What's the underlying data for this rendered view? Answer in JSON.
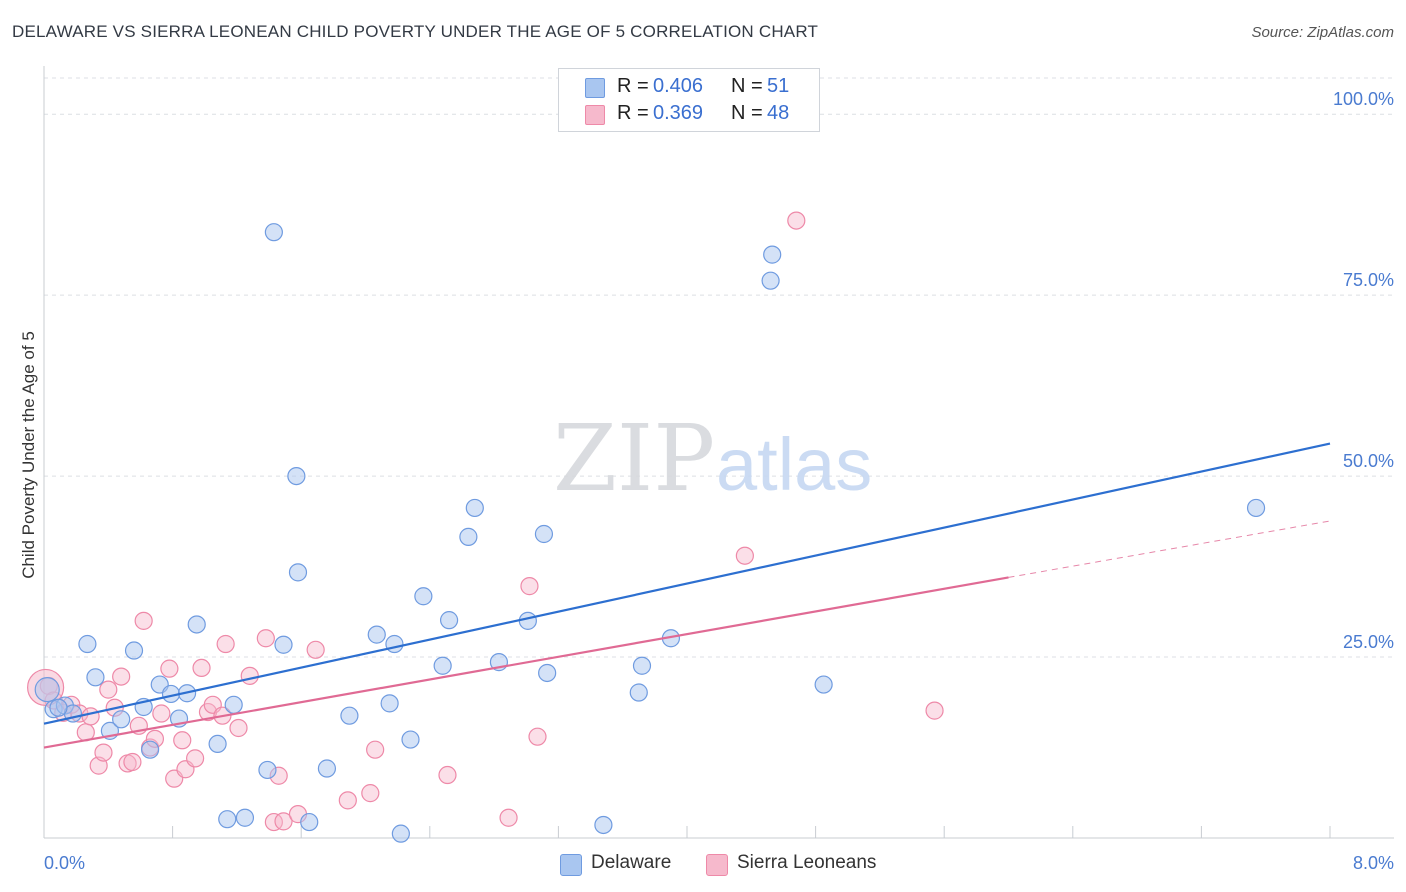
{
  "header": {
    "title": "DELAWARE VS SIERRA LEONEAN CHILD POVERTY UNDER THE AGE OF 5 CORRELATION CHART",
    "source": "Source: ZipAtlas.com"
  },
  "watermark": {
    "zip": "ZIP",
    "atlas": "atlas"
  },
  "legend": {
    "rows": [
      {
        "r_label": "R =",
        "r_value": "0.406",
        "n_label": "N =",
        "n_value": "51",
        "color": "#a9c6f0"
      },
      {
        "r_label": "R =",
        "r_value": "0.369",
        "n_label": "N =",
        "n_value": "48",
        "color": "#f6b9cc"
      }
    ]
  },
  "bottom_legend": {
    "items": [
      "Delaware",
      "Sierra Leoneans"
    ]
  },
  "colors": {
    "delaware_fill": "#a9c6f0",
    "delaware_stroke": "#6f9be0",
    "delaware_line": "#2d6fd0",
    "sierra_fill": "#f6b9cc",
    "sierra_stroke": "#ee89a8",
    "sierra_line": "#e06a94",
    "tick_text": "#4a7bd0",
    "grid": "#dcdfe4"
  },
  "chart_data": {
    "type": "scatter",
    "title": "DELAWARE VS SIERRA LEONEAN CHILD POVERTY UNDER THE AGE OF 5 CORRELATION CHART",
    "xlabel": "",
    "ylabel": "Child Poverty Under the Age of 5",
    "xlim": [
      0,
      8
    ],
    "ylim": [
      0,
      105
    ],
    "x_tick_labels": [
      "0.0%",
      "8.0%"
    ],
    "y_ticks": [
      25,
      50,
      75,
      100
    ],
    "y_tick_labels": [
      "25.0%",
      "50.0%",
      "75.0%",
      "100.0%"
    ],
    "grid": true,
    "legend_position": "top-center",
    "series": [
      {
        "name": "Delaware",
        "r": 0.406,
        "n": 51,
        "trend": {
          "x": [
            0,
            8
          ],
          "y": [
            15.8,
            54.5
          ]
        },
        "points": [
          [
            0.02,
            20.5
          ],
          [
            0.06,
            17.8
          ],
          [
            0.13,
            18.3
          ],
          [
            0.18,
            17.2
          ],
          [
            0.27,
            26.8
          ],
          [
            0.32,
            22.2
          ],
          [
            0.41,
            14.8
          ],
          [
            0.48,
            16.4
          ],
          [
            0.56,
            25.9
          ],
          [
            0.62,
            18.1
          ],
          [
            0.66,
            12.2
          ],
          [
            0.72,
            21.2
          ],
          [
            0.79,
            19.9
          ],
          [
            0.84,
            16.5
          ],
          [
            0.89,
            20.0
          ],
          [
            0.95,
            29.5
          ],
          [
            1.08,
            13.0
          ],
          [
            1.14,
            2.6
          ],
          [
            1.18,
            18.4
          ],
          [
            1.25,
            2.8
          ],
          [
            1.39,
            9.4
          ],
          [
            1.43,
            83.7
          ],
          [
            1.49,
            26.7
          ],
          [
            1.57,
            50.0
          ],
          [
            1.58,
            36.7
          ],
          [
            1.65,
            2.2
          ],
          [
            1.76,
            9.6
          ],
          [
            1.9,
            16.9
          ],
          [
            2.07,
            28.1
          ],
          [
            2.15,
            18.6
          ],
          [
            2.18,
            26.8
          ],
          [
            2.22,
            0.6
          ],
          [
            2.28,
            13.6
          ],
          [
            2.36,
            33.4
          ],
          [
            2.48,
            23.8
          ],
          [
            2.52,
            30.1
          ],
          [
            2.64,
            41.6
          ],
          [
            2.68,
            45.6
          ],
          [
            2.83,
            24.3
          ],
          [
            3.01,
            30.0
          ],
          [
            3.11,
            42.0
          ],
          [
            3.13,
            22.8
          ],
          [
            3.48,
            1.8
          ],
          [
            3.7,
            20.1
          ],
          [
            3.72,
            23.8
          ],
          [
            3.9,
            27.6
          ],
          [
            4.52,
            77.0
          ],
          [
            4.53,
            80.6
          ],
          [
            4.85,
            21.2
          ],
          [
            7.54,
            45.6
          ],
          [
            0.09,
            18.0
          ]
        ]
      },
      {
        "name": "Sierra Leoneans",
        "r": 0.369,
        "n": 48,
        "trend": {
          "x": [
            0,
            6.0
          ],
          "y": [
            12.5,
            36.0
          ]
        },
        "trend_dashed": {
          "x": [
            6.0,
            8
          ],
          "y": [
            36.0,
            43.8
          ]
        },
        "points": [
          [
            0.03,
            21.0
          ],
          [
            0.06,
            19.0
          ],
          [
            0.12,
            17.3
          ],
          [
            0.17,
            18.4
          ],
          [
            0.22,
            17.2
          ],
          [
            0.26,
            14.6
          ],
          [
            0.29,
            16.8
          ],
          [
            0.34,
            10.0
          ],
          [
            0.37,
            11.8
          ],
          [
            0.4,
            20.5
          ],
          [
            0.44,
            18.0
          ],
          [
            0.48,
            22.3
          ],
          [
            0.52,
            10.3
          ],
          [
            0.55,
            10.5
          ],
          [
            0.59,
            15.5
          ],
          [
            0.62,
            30.0
          ],
          [
            0.66,
            12.5
          ],
          [
            0.69,
            13.7
          ],
          [
            0.73,
            17.2
          ],
          [
            0.78,
            23.4
          ],
          [
            0.81,
            8.2
          ],
          [
            0.86,
            13.5
          ],
          [
            0.88,
            9.5
          ],
          [
            0.94,
            11.0
          ],
          [
            0.98,
            23.5
          ],
          [
            1.02,
            17.4
          ],
          [
            1.05,
            18.4
          ],
          [
            1.11,
            16.9
          ],
          [
            1.13,
            26.8
          ],
          [
            1.21,
            15.2
          ],
          [
            1.28,
            22.4
          ],
          [
            1.38,
            27.6
          ],
          [
            1.43,
            2.2
          ],
          [
            1.46,
            8.6
          ],
          [
            1.49,
            2.3
          ],
          [
            1.58,
            3.3
          ],
          [
            1.69,
            26.0
          ],
          [
            1.89,
            5.2
          ],
          [
            2.03,
            6.2
          ],
          [
            2.06,
            12.2
          ],
          [
            2.51,
            8.7
          ],
          [
            2.89,
            2.8
          ],
          [
            3.02,
            34.8
          ],
          [
            3.07,
            14.0
          ],
          [
            4.36,
            39.0
          ],
          [
            4.68,
            85.3
          ],
          [
            5.54,
            17.6
          ],
          [
            0.01,
            20.8
          ]
        ]
      }
    ]
  }
}
